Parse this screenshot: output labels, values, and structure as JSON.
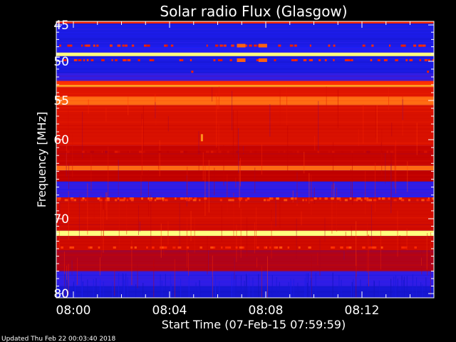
{
  "chart_data": {
    "type": "heatmap",
    "title": "Solar radio Flux (Glasgow)",
    "xlabel": "Start Time (07-Feb-15 07:59:59)",
    "ylabel": "Frequency [MHz]",
    "x_tick_labels": [
      "08:00",
      "08:04",
      "08:08",
      "08:12"
    ],
    "y_tick_labels": [
      "45",
      "50",
      "55",
      "60",
      "70",
      "80"
    ],
    "xlim_minutes": [
      0,
      15
    ],
    "colormap": [
      "#0a0a90",
      "#2020ff",
      "#c00000",
      "#ff2a00",
      "#ff9a20",
      "#ffff80"
    ],
    "intensity_bands": [
      {
        "freq_mhz": [
          44.0,
          44.6
        ],
        "level": 0.55
      },
      {
        "freq_mhz": [
          44.6,
          48.0
        ],
        "level": 0.15
      },
      {
        "freq_mhz": [
          48.0,
          48.8
        ],
        "level": 0.18
      },
      {
        "freq_mhz": [
          48.8,
          49.3
        ],
        "level": 1.0
      },
      {
        "freq_mhz": [
          49.3,
          51.5
        ],
        "level": 0.15
      },
      {
        "freq_mhz": [
          51.5,
          52.5
        ],
        "level": 0.22
      },
      {
        "freq_mhz": [
          52.5,
          53.0
        ],
        "level": 0.6
      },
      {
        "freq_mhz": [
          53.0,
          53.3
        ],
        "level": 0.8
      },
      {
        "freq_mhz": [
          53.3,
          54.5
        ],
        "level": 0.5
      },
      {
        "freq_mhz": [
          54.5,
          55.6
        ],
        "level": 0.72
      },
      {
        "freq_mhz": [
          55.6,
          60.8
        ],
        "level": 0.48
      },
      {
        "freq_mhz": [
          60.8,
          63.3
        ],
        "level": 0.42
      },
      {
        "freq_mhz": [
          63.3,
          63.9
        ],
        "level": 0.72
      },
      {
        "freq_mhz": [
          63.9,
          65.3
        ],
        "level": 0.4
      },
      {
        "freq_mhz": [
          65.3,
          67.3
        ],
        "level": 0.22
      },
      {
        "freq_mhz": [
          67.3,
          67.9
        ],
        "level": 0.45
      },
      {
        "freq_mhz": [
          67.9,
          71.6
        ],
        "level": 0.46
      },
      {
        "freq_mhz": [
          71.6,
          72.3
        ],
        "level": 1.0
      },
      {
        "freq_mhz": [
          72.3,
          74.2
        ],
        "level": 0.45
      },
      {
        "freq_mhz": [
          74.2,
          77.0
        ],
        "level": 0.38
      },
      {
        "freq_mhz": [
          77.0,
          79.0
        ],
        "level": 0.22
      },
      {
        "freq_mhz": [
          79.0,
          80.5
        ],
        "level": 0.12
      }
    ]
  },
  "footer": {
    "updated": "Updated Thu Feb 22 00:03:40 2018"
  }
}
